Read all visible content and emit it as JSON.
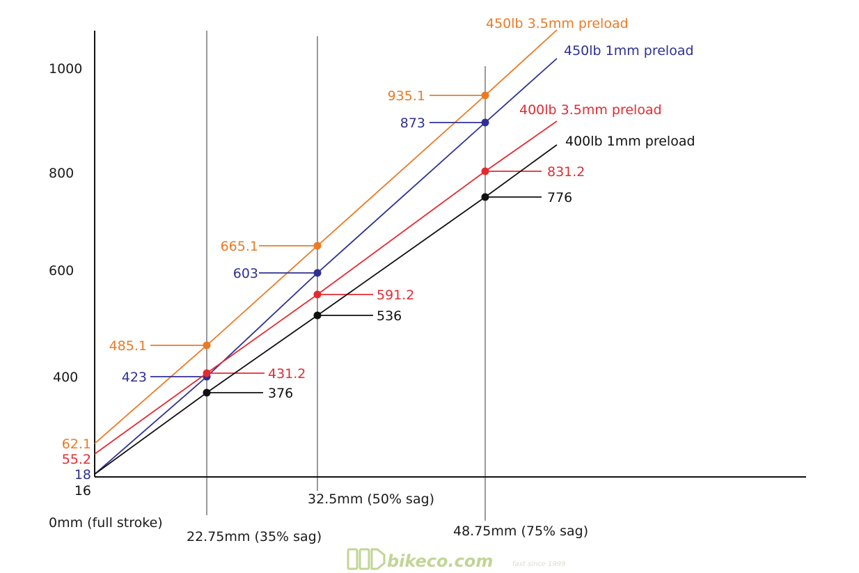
{
  "chart_data": {
    "type": "line",
    "title": "",
    "xlabel": "",
    "ylabel": "",
    "x": [
      0,
      22.75,
      32.5,
      48.75
    ],
    "x_tick_labels": [
      "0mm (full stroke)",
      "22.75mm (35% sag)",
      "32.5mm (50% sag)",
      "48.75mm (75% sag)"
    ],
    "y_tick_labels": [
      "1000",
      "800",
      "600",
      "400"
    ],
    "series": [
      {
        "name": "450lb 3.5mm preload",
        "color": "#ea7a24",
        "values": [
          62.1,
          485.1,
          665.1,
          935.1
        ],
        "labels": [
          "62.1",
          "485.1",
          "665.1",
          "935.1"
        ]
      },
      {
        "name": "450lb 1mm preload",
        "color": "#2e3192",
        "values": [
          18,
          423,
          603,
          873
        ],
        "labels": [
          "18",
          "423",
          "603",
          "873"
        ]
      },
      {
        "name": "400lb 3.5mm preload",
        "color": "#e42a31",
        "values": [
          55.2,
          431.2,
          591.2,
          831.2
        ],
        "labels": [
          "55.2",
          "431.2",
          "591.2",
          "831.2"
        ]
      },
      {
        "name": "400lb 1mm preload",
        "color": "#111111",
        "values": [
          16,
          376,
          536,
          776
        ],
        "labels": [
          "16",
          "376",
          "536",
          "776"
        ]
      }
    ],
    "grid": "vertical lines at the three sag positions",
    "legend": "labels at line ends, top-right"
  },
  "watermark": {
    "text": "bikeco.com",
    "tagline": "fast since 1999",
    "color": "#a8c46a",
    "icon": "bikeco-logo-icon"
  }
}
